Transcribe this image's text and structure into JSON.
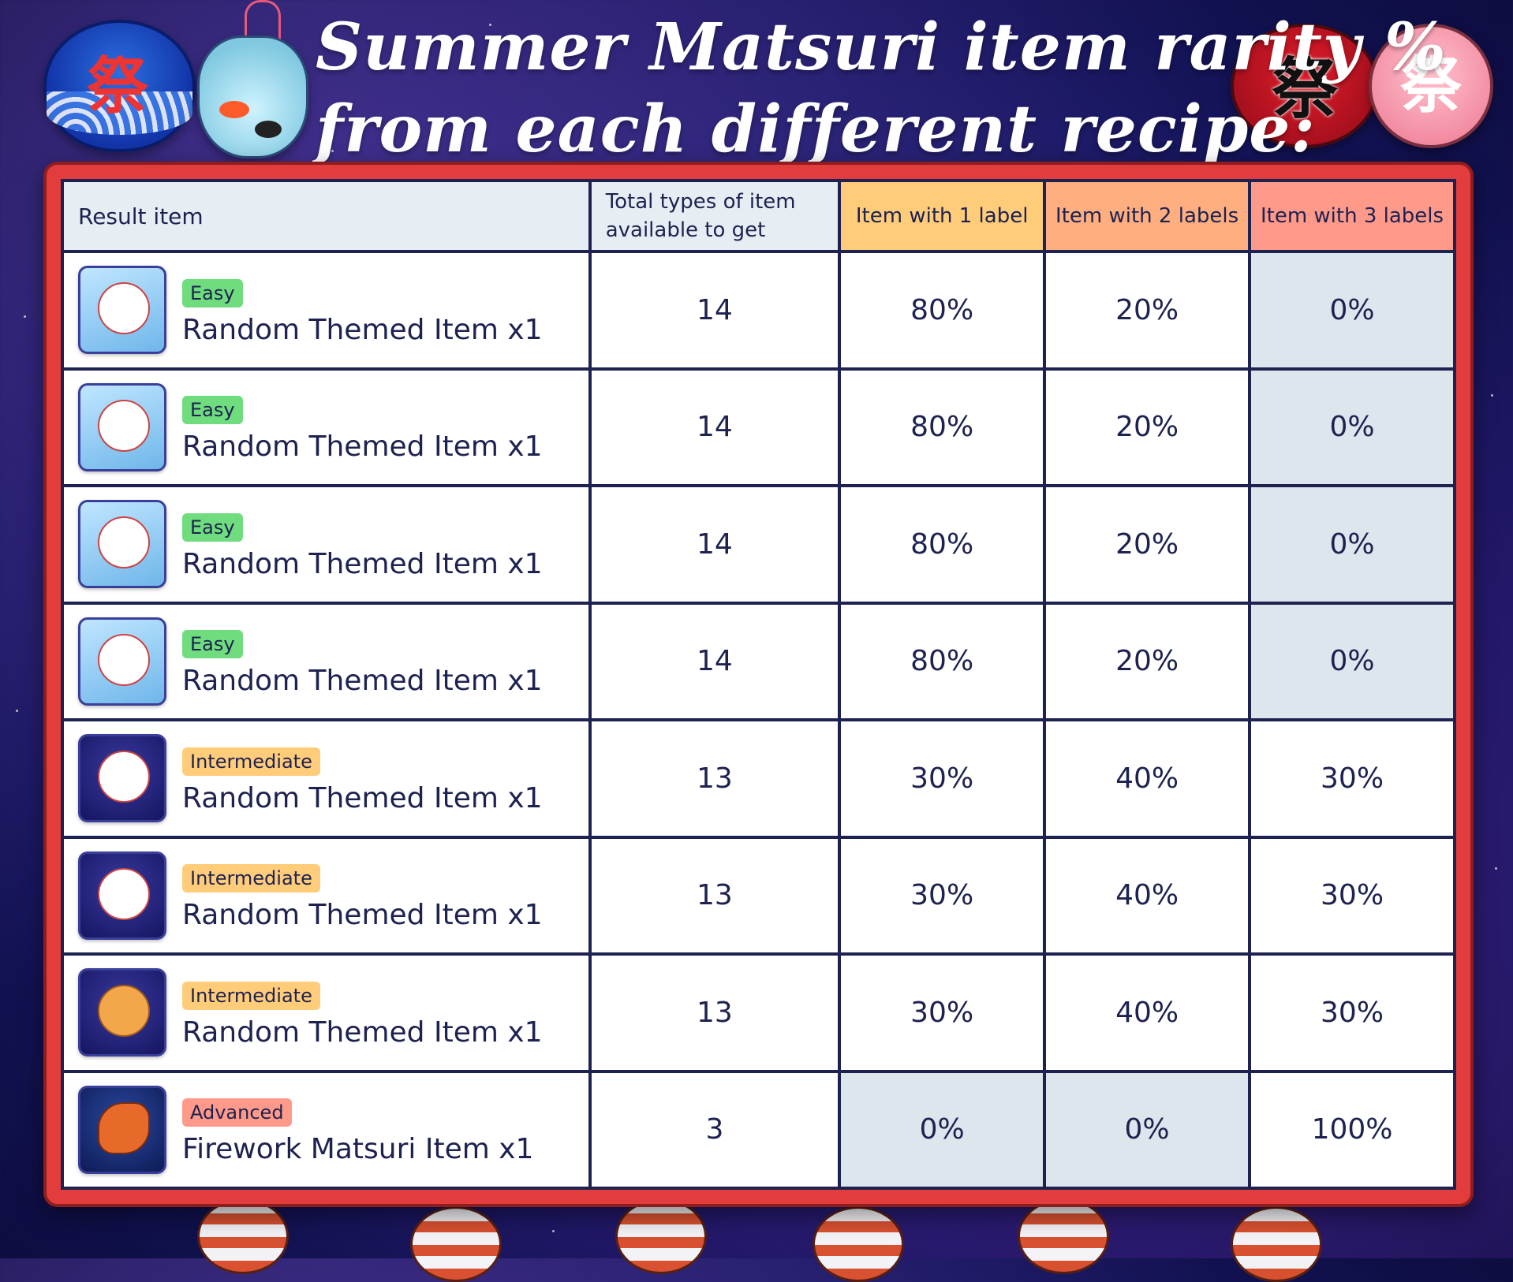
{
  "title": {
    "line1": "Summer Matsuri item rarity %",
    "line2": "from each different recipe:"
  },
  "decorations": {
    "fan_left_kanji": "祭",
    "fan_right_kanji": "祭",
    "fan_pink_kanji": "祭",
    "icons": [
      "blue-wave-fan-icon",
      "goldfish-bag-icon",
      "red-fan-icon",
      "pink-fan-icon",
      "paper-lantern-icon"
    ]
  },
  "table": {
    "headers": {
      "result_item": "Result item",
      "total_types": "Total types of item available to get",
      "label1": "Item with 1 label",
      "label2": "Item with 2 labels",
      "label3": "Item with 3 labels"
    },
    "rows": [
      {
        "difficulty": "Easy",
        "name": "Random Themed Item x1",
        "total": "14",
        "l1": "80%",
        "l2": "20%",
        "l3": "0%",
        "icon": "fox-mask-ufo-icon"
      },
      {
        "difficulty": "Easy",
        "name": "Random Themed Item x1",
        "total": "14",
        "l1": "80%",
        "l2": "20%",
        "l3": "0%",
        "icon": "okame-mask-icon"
      },
      {
        "difficulty": "Easy",
        "name": "Random Themed Item x1",
        "total": "14",
        "l1": "80%",
        "l2": "20%",
        "l3": "0%",
        "icon": "red-glasses-yukata-icon"
      },
      {
        "difficulty": "Easy",
        "name": "Random Themed Item x1",
        "total": "14",
        "l1": "80%",
        "l2": "20%",
        "l3": "0%",
        "icon": "sunflower-watermelon-icon"
      },
      {
        "difficulty": "Intermediate",
        "name": "Random Themed Item x1",
        "total": "13",
        "l1": "30%",
        "l2": "40%",
        "l3": "30%",
        "icon": "kitsune-mask-daruma-icon"
      },
      {
        "difficulty": "Intermediate",
        "name": "Random Themed Item x1",
        "total": "13",
        "l1": "30%",
        "l2": "40%",
        "l3": "30%",
        "icon": "kitsune-mask-fireworks-icon"
      },
      {
        "difficulty": "Intermediate",
        "name": "Random Themed Item x1",
        "total": "13",
        "l1": "30%",
        "l2": "40%",
        "l3": "30%",
        "icon": "hyottoko-mask-icon"
      },
      {
        "difficulty": "Advanced",
        "name": "Firework Matsuri Item x1",
        "total": "3",
        "l1": "0%",
        "l2": "0%",
        "l3": "100%",
        "icon": "koi-firework-icon"
      }
    ]
  }
}
